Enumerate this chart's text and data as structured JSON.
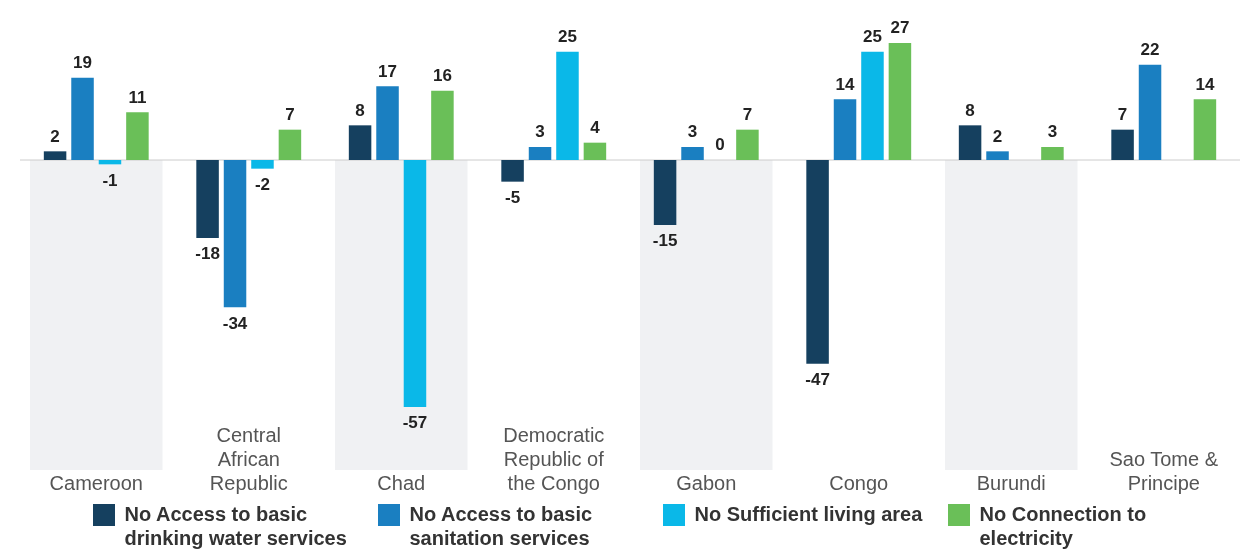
{
  "chart_data": {
    "type": "bar",
    "categories": [
      "Cameroon",
      "Central African Republic",
      "Chad",
      "Democratic Republic of the Congo",
      "Gabon",
      "Congo",
      "Burundi",
      "Sao Tome & Principe"
    ],
    "series": [
      {
        "name": "No Access to basic drinking water services",
        "color": "#15405f",
        "values": [
          2,
          -18,
          8,
          -5,
          -15,
          -47,
          8,
          7
        ]
      },
      {
        "name": "No Access to basic sanitation services",
        "color": "#1a7fc1",
        "values": [
          19,
          -34,
          17,
          3,
          3,
          14,
          2,
          22
        ]
      },
      {
        "name": "No Sufficient living area",
        "color": "#0ab8e8",
        "values": [
          -1,
          -2,
          -57,
          25,
          0,
          25,
          null,
          null
        ]
      },
      {
        "name": "No Connection to electricity",
        "color": "#6abf58",
        "values": [
          11,
          7,
          16,
          4,
          7,
          27,
          3,
          14
        ]
      }
    ],
    "tick_labels": "x",
    "grid": false,
    "data_labels": true,
    "legend": "bottom",
    "bands": [
      {
        "axis": "x",
        "from": "Cameroon",
        "to": "Cameroon",
        "color": "#f0f1f3"
      },
      {
        "axis": "x",
        "from": "Chad",
        "to": "Chad",
        "color": "#f0f1f3"
      },
      {
        "axis": "x",
        "from": "Gabon",
        "to": "Gabon",
        "color": "#f0f1f3"
      },
      {
        "axis": "x",
        "from": "Burundi",
        "to": "Burundi",
        "color": "#f0f1f3"
      }
    ]
  }
}
